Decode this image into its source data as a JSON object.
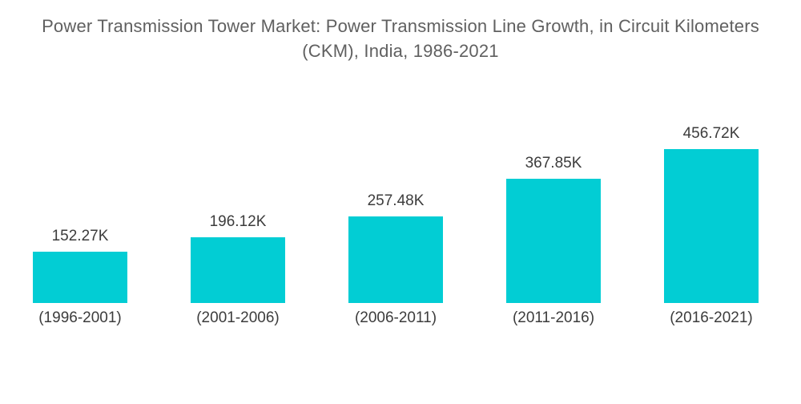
{
  "page": {
    "background": "#ffffff"
  },
  "chart_data": {
    "type": "bar",
    "title": "Power Transmission Tower Market: Power Transmission Line Growth, in Circuit Kilometers (CKM), India, 1986-2021",
    "categories": [
      "(1996-2001)",
      "(2001-2006)",
      "(2006-2011)",
      "(2011-2016)",
      "(2016-2021)"
    ],
    "values": [
      152.27,
      196.12,
      257.48,
      367.85,
      456.72
    ],
    "value_labels": [
      "152.27K",
      "196.12K",
      "257.48K",
      "367.85K",
      "456.72K"
    ],
    "xlabel": "",
    "ylabel": "",
    "ylim": [
      0,
      500
    ],
    "grid": false,
    "legend": "none",
    "axes_visible": false,
    "bar_color": "#02CDD4",
    "title_color": "#606060",
    "label_color": "#3C3C3C"
  }
}
